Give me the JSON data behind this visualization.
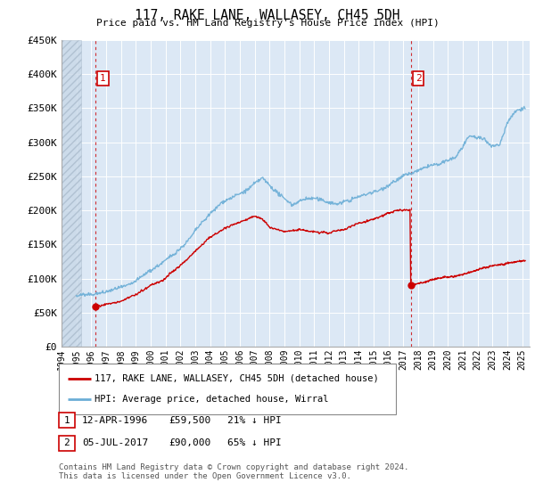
{
  "title": "117, RAKE LANE, WALLASEY, CH45 5DH",
  "subtitle": "Price paid vs. HM Land Registry's House Price Index (HPI)",
  "ylim": [
    0,
    450000
  ],
  "yticks": [
    0,
    50000,
    100000,
    150000,
    200000,
    250000,
    300000,
    350000,
    400000,
    450000
  ],
  "ytick_labels": [
    "£0",
    "£50K",
    "£100K",
    "£150K",
    "£200K",
    "£250K",
    "£300K",
    "£350K",
    "£400K",
    "£450K"
  ],
  "xlim_start": 1994.0,
  "xlim_end": 2025.5,
  "hpi_color": "#6baed6",
  "price_color": "#cc0000",
  "marker1_x": 1996.28,
  "marker1_y": 59500,
  "marker2_x": 2017.5,
  "marker2_y": 90000,
  "hatch_end_x": 1995.3,
  "transaction1_date": "12-APR-1996",
  "transaction1_price": "£59,500",
  "transaction1_hpi": "21% ↓ HPI",
  "transaction2_date": "05-JUL-2017",
  "transaction2_price": "£90,000",
  "transaction2_hpi": "65% ↓ HPI",
  "legend_line1": "117, RAKE LANE, WALLASEY, CH45 5DH (detached house)",
  "legend_line2": "HPI: Average price, detached house, Wirral",
  "footer": "Contains HM Land Registry data © Crown copyright and database right 2024.\nThis data is licensed under the Open Government Licence v3.0.",
  "plot_bg_color": "#dce8f5"
}
